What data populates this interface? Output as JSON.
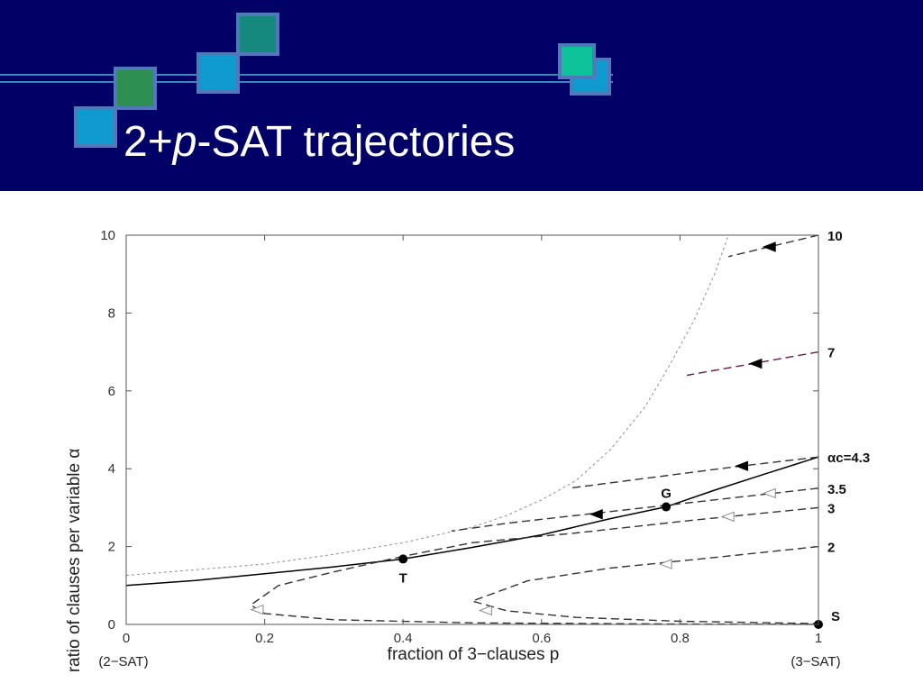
{
  "slide": {
    "title_prefix": "2+",
    "title_var": "p",
    "title_suffix": "-SAT trajectories",
    "header_color": "#000066"
  },
  "chart_data": {
    "type": "line",
    "xlabel": "fraction of 3−clauses  p",
    "ylabel": "ratio of clauses per variable  α",
    "xlim": [
      0,
      1
    ],
    "ylim": [
      0,
      10
    ],
    "x_ticks": [
      "0",
      "0.2",
      "0.4",
      "0.6",
      "0.8",
      "1"
    ],
    "y_ticks": [
      "0",
      "2",
      "4",
      "6",
      "8",
      "10"
    ],
    "x_end_labels": {
      "left": "(2−SAT)",
      "right": "(3−SAT)"
    },
    "grid": false,
    "series": [
      {
        "style": "dotted",
        "points": [
          [
            0,
            1.26
          ],
          [
            0.2,
            1.55
          ],
          [
            0.3,
            1.8
          ],
          [
            0.4,
            2.1
          ],
          [
            0.5,
            2.5
          ],
          [
            0.55,
            2.8
          ],
          [
            0.6,
            3.2
          ],
          [
            0.65,
            3.7
          ],
          [
            0.7,
            4.5
          ],
          [
            0.75,
            5.6
          ],
          [
            0.78,
            6.5
          ],
          [
            0.82,
            7.8
          ],
          [
            0.85,
            9.0
          ],
          [
            0.87,
            10.0
          ]
        ]
      },
      {
        "style": "solid",
        "points": [
          [
            0,
            1.0
          ],
          [
            0.1,
            1.13
          ],
          [
            0.2,
            1.3
          ],
          [
            0.3,
            1.48
          ],
          [
            0.4,
            1.68
          ],
          [
            0.5,
            1.98
          ],
          [
            0.6,
            2.3
          ],
          [
            0.7,
            2.72
          ],
          [
            0.78,
            3.02
          ],
          [
            0.85,
            3.45
          ],
          [
            0.92,
            3.85
          ],
          [
            1.0,
            4.3
          ]
        ]
      },
      {
        "name": "10",
        "style": "dashed",
        "points": [
          [
            1.0,
            10.0
          ],
          [
            0.87,
            9.45
          ]
        ]
      },
      {
        "name": "7",
        "style": "dashed",
        "points": [
          [
            1.0,
            7.0
          ],
          [
            0.81,
            6.4
          ]
        ]
      },
      {
        "name": "αc=4.3",
        "style": "dashed",
        "points": [
          [
            1.0,
            4.3
          ],
          [
            0.88,
            4.05
          ],
          [
            0.64,
            3.5
          ]
        ]
      },
      {
        "name": "3.5",
        "style": "dashed",
        "points": [
          [
            1.0,
            3.5
          ],
          [
            0.85,
            3.2
          ],
          [
            0.7,
            2.9
          ],
          [
            0.55,
            2.6
          ],
          [
            0.47,
            2.4
          ]
        ]
      },
      {
        "name": "3",
        "style": "dashed",
        "points": [
          [
            1.0,
            3.0
          ],
          [
            0.82,
            2.68
          ],
          [
            0.65,
            2.35
          ],
          [
            0.5,
            2.1
          ],
          [
            0.4,
            1.75
          ]
        ]
      },
      {
        "name": "2",
        "style": "dashed",
        "points": [
          [
            1.0,
            2.0
          ],
          [
            0.85,
            1.72
          ],
          [
            0.7,
            1.45
          ],
          [
            0.58,
            1.12
          ],
          [
            0.5,
            0.6
          ],
          [
            0.55,
            0.35
          ],
          [
            0.65,
            0.18
          ],
          [
            0.8,
            0.08
          ],
          [
            1.0,
            0.02
          ]
        ]
      },
      {
        "name": "",
        "style": "dashed",
        "points": [
          [
            0.4,
            1.75
          ],
          [
            0.3,
            1.35
          ],
          [
            0.22,
            1.0
          ],
          [
            0.18,
            0.5
          ],
          [
            0.2,
            0.28
          ],
          [
            0.3,
            0.12
          ],
          [
            0.5,
            0.04
          ],
          [
            0.8,
            0.01
          ],
          [
            1.0,
            0.0
          ]
        ]
      }
    ],
    "markers": [
      {
        "label": "T",
        "x": 0.4,
        "y": 1.68
      },
      {
        "label": "G",
        "x": 0.78,
        "y": 3.02
      },
      {
        "label": "S",
        "x": 1.0,
        "y": 0.0
      }
    ],
    "curve_labels": [
      {
        "text": "10",
        "y": 10.0
      },
      {
        "text": "7",
        "y": 7.0
      },
      {
        "text": "αc=4.3",
        "y": 4.3
      },
      {
        "text": "3.5",
        "y": 3.5
      },
      {
        "text": "3",
        "y": 3.0
      },
      {
        "text": "2",
        "y": 2.0
      }
    ],
    "arrows": [
      {
        "x": 0.93,
        "y": 9.7,
        "filled": true
      },
      {
        "x": 0.91,
        "y": 6.7,
        "filled": true
      },
      {
        "x": 0.89,
        "y": 4.07,
        "filled": true
      },
      {
        "x": 0.68,
        "y": 2.83,
        "filled": true
      },
      {
        "x": 0.93,
        "y": 3.37,
        "filled": false
      },
      {
        "x": 0.87,
        "y": 2.77,
        "filled": false
      },
      {
        "x": 0.78,
        "y": 1.55,
        "filled": false
      },
      {
        "x": 0.52,
        "y": 0.36,
        "filled": false
      },
      {
        "x": 0.19,
        "y": 0.38,
        "filled": false
      }
    ]
  }
}
